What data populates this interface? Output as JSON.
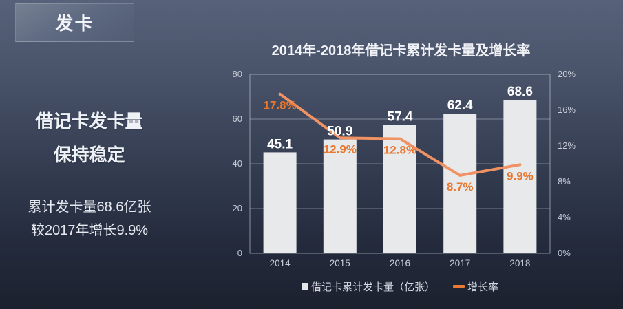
{
  "badge": {
    "label": "发卡"
  },
  "sidebar": {
    "headline_line1": "借记卡发卡量",
    "headline_line2": "保持稳定",
    "body_line1": "累计发卡量68.6亿张",
    "body_line2": "较2017年增长9.9%"
  },
  "chart_data": {
    "type": "bar",
    "subtype": "bar-line-combo",
    "title": "2014年-2018年借记卡累计发卡量及增长率",
    "categories": [
      "2014",
      "2015",
      "2016",
      "2017",
      "2018"
    ],
    "series": [
      {
        "name": "借记卡累计发卡量（亿张）",
        "type": "bar",
        "axis": "left",
        "values": [
          45.1,
          50.9,
          57.4,
          62.4,
          68.6
        ],
        "data_labels": [
          "45.1",
          "50.9",
          "57.4",
          "62.4",
          "68.6"
        ]
      },
      {
        "name": "增长率",
        "type": "line",
        "axis": "right",
        "values": [
          17.8,
          12.9,
          12.8,
          8.7,
          9.9
        ],
        "data_labels": [
          "17.8%",
          "12.9%",
          "12.8%",
          "8.7%",
          "9.9%"
        ]
      }
    ],
    "left_axis": {
      "min": 0,
      "max": 80,
      "tick_values": [
        0,
        20,
        40,
        60,
        80
      ],
      "tick_labels": [
        "0",
        "20",
        "40",
        "60",
        "80"
      ]
    },
    "right_axis": {
      "min": 0,
      "max": 20,
      "tick_labels": [
        "0%",
        "4%",
        "8%",
        "12%",
        "16%",
        "20%"
      ]
    },
    "grid": true,
    "legend_position": "bottom",
    "colors": {
      "bar_fill": "#e8e9eb",
      "bar_label": "#ffffff",
      "line_stroke": "#f09263",
      "line_label": "#e8772f",
      "grid_line": "rgba(206,213,224,0.45)",
      "plot_border": "rgba(206,213,224,0.6)",
      "axis_text": "#c7cdd8"
    }
  }
}
